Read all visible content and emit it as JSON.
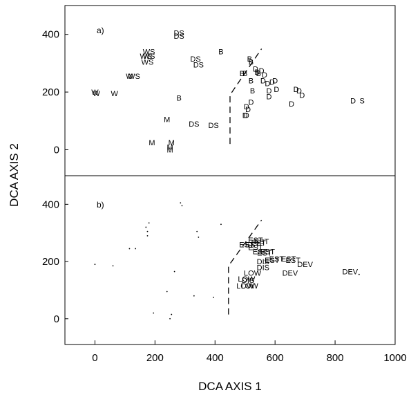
{
  "chart_data": {
    "type": "scatter",
    "xlabel": "DCA AXIS 1",
    "ylabel": "DCA AXIS 2",
    "xlim": [
      -100,
      1000
    ],
    "xticks": [
      0,
      200,
      400,
      600,
      800,
      1000
    ],
    "grid": false,
    "panels": [
      {
        "label": "a)",
        "ylim": [
          -90,
          500
        ],
        "yticks": [
          0,
          200,
          400
        ],
        "boundary": [
          [
            450,
            20
          ],
          [
            450,
            190
          ],
          [
            555,
            350
          ]
        ],
        "points": [
          {
            "x": 280,
            "y": 405,
            "t": "DS"
          },
          {
            "x": 280,
            "y": 395,
            "t": "DS"
          },
          {
            "x": 420,
            "y": 340,
            "t": "B"
          },
          {
            "x": 180,
            "y": 340,
            "t": "WS"
          },
          {
            "x": 180,
            "y": 325,
            "t": "WS"
          },
          {
            "x": 170,
            "y": 325,
            "t": "WS"
          },
          {
            "x": 175,
            "y": 305,
            "t": "WS"
          },
          {
            "x": 335,
            "y": 315,
            "t": "DS"
          },
          {
            "x": 345,
            "y": 295,
            "t": "DS"
          },
          {
            "x": 130,
            "y": 255,
            "t": "WS"
          },
          {
            "x": 115,
            "y": 255,
            "t": "W"
          },
          {
            "x": 0,
            "y": 200,
            "t": "W"
          },
          {
            "x": 5,
            "y": 195,
            "t": "W"
          },
          {
            "x": 65,
            "y": 195,
            "t": "W"
          },
          {
            "x": 515,
            "y": 315,
            "t": "B"
          },
          {
            "x": 520,
            "y": 305,
            "t": "B"
          },
          {
            "x": 490,
            "y": 265,
            "t": "B"
          },
          {
            "x": 500,
            "y": 265,
            "t": "B"
          },
          {
            "x": 535,
            "y": 280,
            "t": "D"
          },
          {
            "x": 540,
            "y": 270,
            "t": "B"
          },
          {
            "x": 545,
            "y": 265,
            "t": "B"
          },
          {
            "x": 555,
            "y": 275,
            "t": "D"
          },
          {
            "x": 565,
            "y": 260,
            "t": "D"
          },
          {
            "x": 520,
            "y": 240,
            "t": "B"
          },
          {
            "x": 560,
            "y": 240,
            "t": "D"
          },
          {
            "x": 575,
            "y": 230,
            "t": "D"
          },
          {
            "x": 590,
            "y": 235,
            "t": "D"
          },
          {
            "x": 600,
            "y": 240,
            "t": "D"
          },
          {
            "x": 605,
            "y": 210,
            "t": "D"
          },
          {
            "x": 525,
            "y": 205,
            "t": "B"
          },
          {
            "x": 580,
            "y": 205,
            "t": "D"
          },
          {
            "x": 580,
            "y": 185,
            "t": "D"
          },
          {
            "x": 670,
            "y": 210,
            "t": "D"
          },
          {
            "x": 680,
            "y": 205,
            "t": "D"
          },
          {
            "x": 690,
            "y": 190,
            "t": "D"
          },
          {
            "x": 280,
            "y": 180,
            "t": "B"
          },
          {
            "x": 520,
            "y": 165,
            "t": "D"
          },
          {
            "x": 505,
            "y": 150,
            "t": "D"
          },
          {
            "x": 510,
            "y": 140,
            "t": "D"
          },
          {
            "x": 655,
            "y": 160,
            "t": "D"
          },
          {
            "x": 500,
            "y": 120,
            "t": "D"
          },
          {
            "x": 505,
            "y": 120,
            "t": "D"
          },
          {
            "x": 860,
            "y": 170,
            "t": "D"
          },
          {
            "x": 890,
            "y": 170,
            "t": "S"
          },
          {
            "x": 240,
            "y": 105,
            "t": "M"
          },
          {
            "x": 330,
            "y": 90,
            "t": "DS"
          },
          {
            "x": 395,
            "y": 85,
            "t": "DS"
          },
          {
            "x": 190,
            "y": 25,
            "t": "M"
          },
          {
            "x": 255,
            "y": 25,
            "t": "M"
          },
          {
            "x": 250,
            "y": 10,
            "t": "M"
          },
          {
            "x": 250,
            "y": 0,
            "t": "M"
          }
        ]
      },
      {
        "label": "b)",
        "ylim": [
          -90,
          500
        ],
        "yticks": [
          0,
          200,
          400
        ],
        "boundary": [
          [
            445,
            15
          ],
          [
            445,
            185
          ],
          [
            555,
            345
          ]
        ],
        "points": [
          {
            "x": 535,
            "y": 275,
            "t": "EST"
          },
          {
            "x": 525,
            "y": 260,
            "t": "EST"
          },
          {
            "x": 545,
            "y": 265,
            "t": "EST"
          },
          {
            "x": 505,
            "y": 260,
            "t": "EST"
          },
          {
            "x": 535,
            "y": 250,
            "t": "EST"
          },
          {
            "x": 555,
            "y": 270,
            "t": "EST"
          },
          {
            "x": 550,
            "y": 235,
            "t": "EST"
          },
          {
            "x": 565,
            "y": 230,
            "t": "EST"
          },
          {
            "x": 575,
            "y": 235,
            "t": "EST"
          },
          {
            "x": 605,
            "y": 210,
            "t": "EST"
          },
          {
            "x": 590,
            "y": 205,
            "t": "EST"
          },
          {
            "x": 645,
            "y": 210,
            "t": "EST"
          },
          {
            "x": 660,
            "y": 205,
            "t": "EST"
          },
          {
            "x": 560,
            "y": 200,
            "t": "DIS"
          },
          {
            "x": 560,
            "y": 180,
            "t": "DIS"
          },
          {
            "x": 700,
            "y": 190,
            "t": "DEV"
          },
          {
            "x": 525,
            "y": 160,
            "t": "LOW"
          },
          {
            "x": 505,
            "y": 140,
            "t": "LOW"
          },
          {
            "x": 510,
            "y": 135,
            "t": "DIS"
          },
          {
            "x": 500,
            "y": 115,
            "t": "LOW"
          },
          {
            "x": 515,
            "y": 115,
            "t": "LOW"
          },
          {
            "x": 650,
            "y": 160,
            "t": "DEV"
          },
          {
            "x": 850,
            "y": 165,
            "t": "DEV"
          }
        ],
        "dots": [
          {
            "x": 285,
            "y": 405
          },
          {
            "x": 290,
            "y": 395
          },
          {
            "x": 180,
            "y": 335
          },
          {
            "x": 170,
            "y": 320
          },
          {
            "x": 175,
            "y": 305
          },
          {
            "x": 175,
            "y": 290
          },
          {
            "x": 115,
            "y": 245
          },
          {
            "x": 135,
            "y": 245
          },
          {
            "x": 340,
            "y": 305
          },
          {
            "x": 345,
            "y": 285
          },
          {
            "x": 420,
            "y": 330
          },
          {
            "x": 0,
            "y": 190
          },
          {
            "x": 60,
            "y": 185
          },
          {
            "x": 265,
            "y": 165
          },
          {
            "x": 240,
            "y": 95
          },
          {
            "x": 330,
            "y": 80
          },
          {
            "x": 395,
            "y": 75
          },
          {
            "x": 195,
            "y": 20
          },
          {
            "x": 255,
            "y": 15
          },
          {
            "x": 250,
            "y": 0
          },
          {
            "x": 880,
            "y": 155
          }
        ]
      }
    ]
  }
}
